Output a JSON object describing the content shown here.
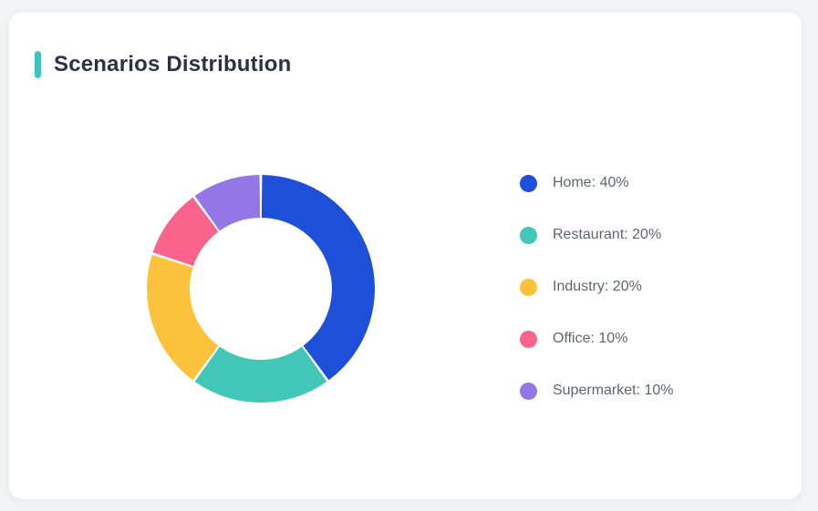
{
  "page": {
    "background_color": "#f2f3f5"
  },
  "card": {
    "title": "Scenarios Distribution",
    "accent_color": "#3ec2bd",
    "background_color": "#ffffff"
  },
  "chart_data": {
    "type": "pie",
    "subtype": "donut",
    "title": "Scenarios Distribution",
    "categories": [
      "Home",
      "Restaurant",
      "Industry",
      "Office",
      "Supermarket"
    ],
    "values": [
      40,
      20,
      20,
      10,
      10
    ],
    "unit": "%",
    "colors": [
      "#1e4fd8",
      "#41c6b8",
      "#fdc23c",
      "#f9638c",
      "#9377e6"
    ],
    "legend_position": "right",
    "legend_format": "{name}: {value}%",
    "start_angle_deg_from_top": 0,
    "direction": "clockwise",
    "outer_radius_px": 125,
    "inner_radius_px": 78,
    "segment_gap_deg": 1.3
  }
}
